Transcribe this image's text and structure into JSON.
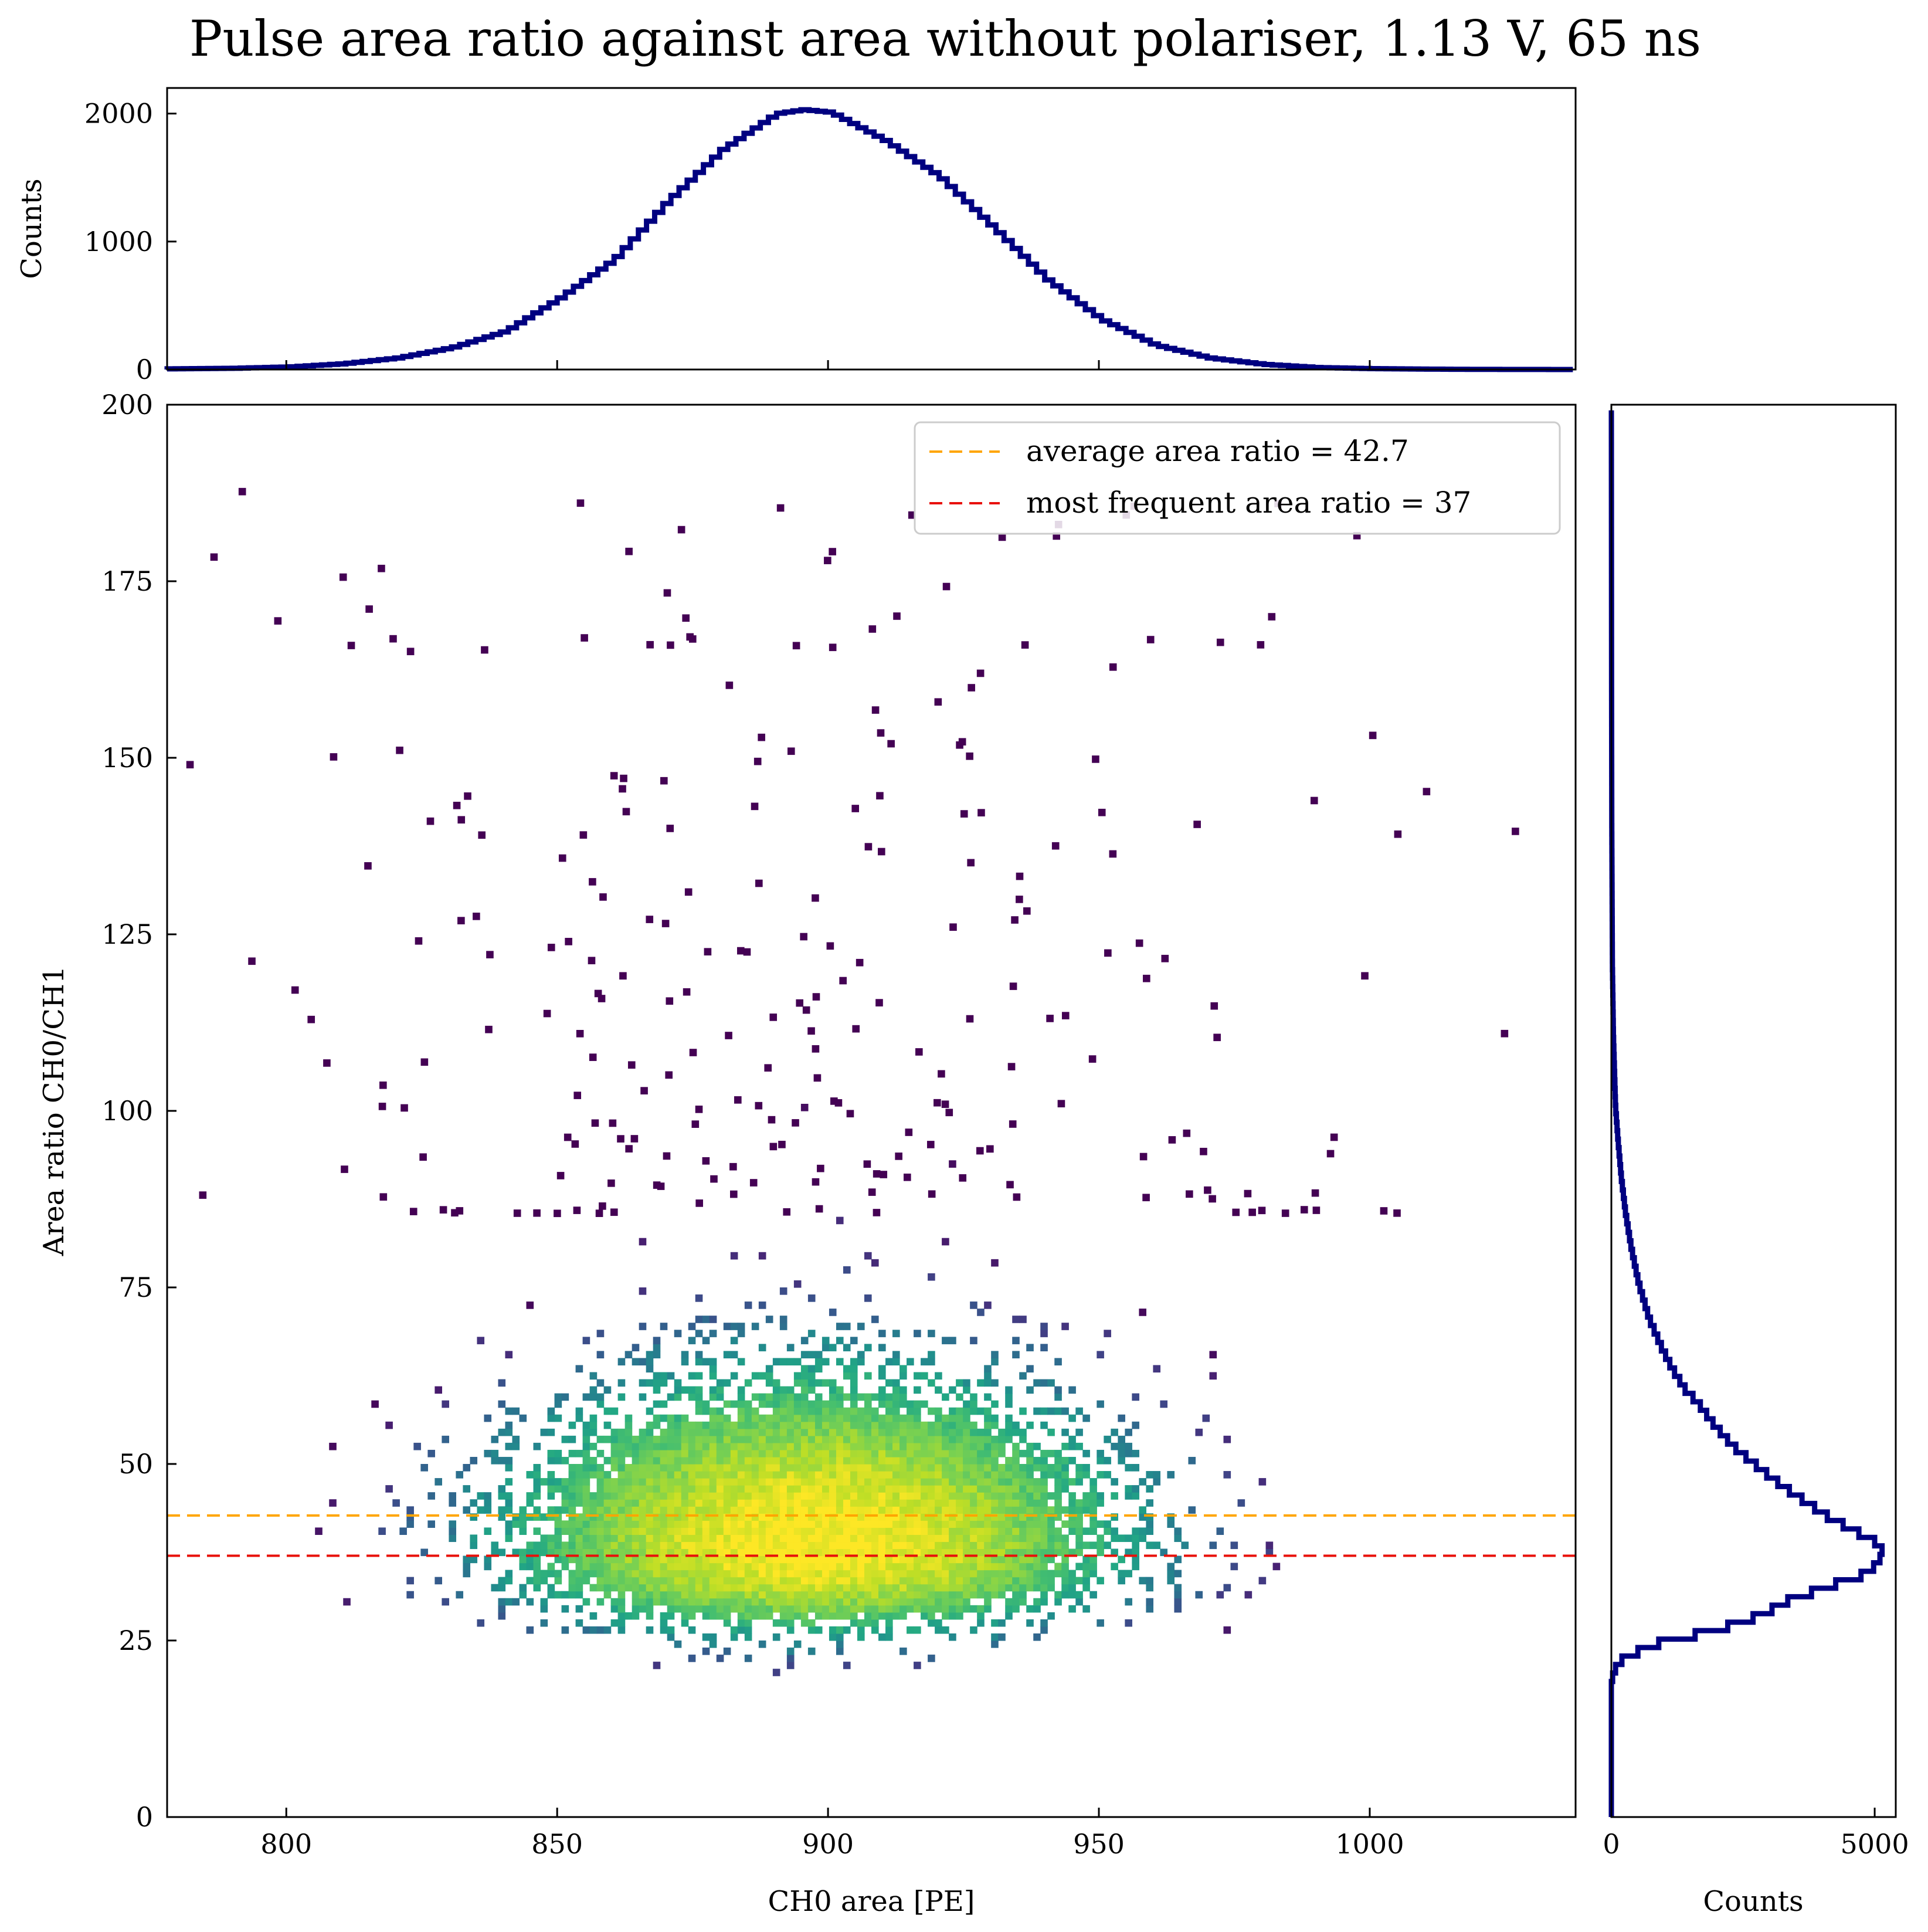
{
  "figure": {
    "title": "Pulse area ratio against area without polariser, 1.13 V, 65 ns"
  },
  "chart_data": [
    {
      "type": "heatmap",
      "panel": "main",
      "xlabel": "CH0 area [PE]",
      "ylabel": "Area ratio CH0/CH1",
      "xlim": [
        778,
        1038
      ],
      "ylim": [
        0,
        200
      ],
      "xticks": [
        800,
        850,
        900,
        950,
        1000
      ],
      "yticks": [
        0,
        25,
        50,
        75,
        100,
        125,
        150,
        175,
        200
      ],
      "colormap": "viridis",
      "distribution": {
        "x_center": 897,
        "x_sigma": 27,
        "y_mode": 37,
        "y_mean": 42.7,
        "y_min": 18,
        "y_max_observed": 188
      },
      "lines": [
        {
          "name": "average area ratio = 42.7",
          "y": 42.7,
          "color": "#FFA500",
          "style": "dashed"
        },
        {
          "name": "most frequent area ratio = 37",
          "y": 37,
          "color": "#E8100A",
          "style": "dashed"
        }
      ],
      "legend": {
        "position": "top-right"
      }
    },
    {
      "type": "line",
      "panel": "top",
      "subtype": "step-histogram",
      "ylabel": "Counts",
      "xlim": [
        778,
        1038
      ],
      "ylim": [
        0,
        2200
      ],
      "yticks": [
        0,
        1000,
        2000
      ],
      "color": "#000080",
      "x": [
        778,
        790,
        800,
        810,
        820,
        830,
        840,
        850,
        860,
        870,
        880,
        890,
        895,
        900,
        910,
        920,
        930,
        940,
        950,
        960,
        970,
        980,
        990,
        1000,
        1010,
        1020,
        1038
      ],
      "y": [
        5,
        10,
        20,
        45,
        90,
        170,
        300,
        560,
        860,
        1320,
        1720,
        2000,
        2030,
        2010,
        1790,
        1510,
        1110,
        700,
        390,
        190,
        90,
        40,
        15,
        7,
        3,
        1,
        0
      ]
    },
    {
      "type": "line",
      "panel": "right",
      "subtype": "step-histogram",
      "xlabel": "Counts",
      "xlim": [
        0,
        5400
      ],
      "xticks": [
        0,
        5000
      ],
      "ylim": [
        0,
        200
      ],
      "color": "#000080",
      "y": [
        0,
        10,
        18,
        20,
        22,
        24,
        26,
        28,
        30,
        32,
        34,
        36,
        37,
        38,
        40,
        42,
        44,
        46,
        48,
        50,
        52,
        55,
        58,
        60,
        63,
        66,
        70,
        75,
        80,
        85,
        90,
        95,
        100,
        110,
        120,
        140,
        160,
        200
      ],
      "x": [
        0,
        0,
        0,
        40,
        240,
        900,
        2050,
        2850,
        3350,
        4100,
        4900,
        5100,
        5150,
        5100,
        4600,
        4100,
        3700,
        3300,
        2950,
        2620,
        2300,
        1950,
        1650,
        1400,
        1150,
        950,
        720,
        520,
        380,
        270,
        190,
        130,
        80,
        40,
        20,
        8,
        4,
        0
      ]
    }
  ]
}
